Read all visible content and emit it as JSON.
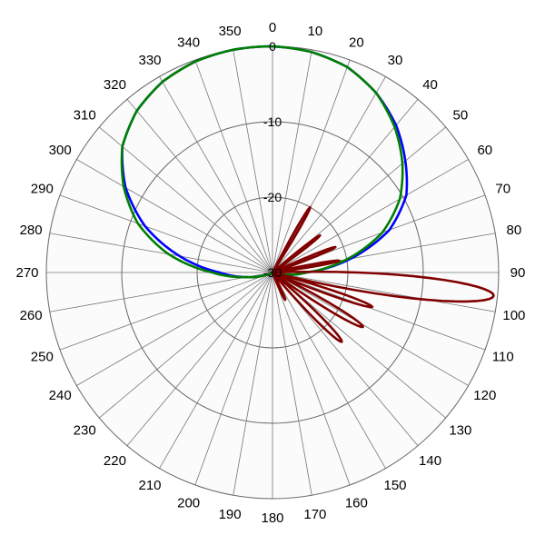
{
  "chart_data": {
    "type": "polar",
    "angle_ticks": [
      "0",
      "10",
      "20",
      "30",
      "40",
      "50",
      "60",
      "70",
      "80",
      "90",
      "100",
      "110",
      "120",
      "130",
      "140",
      "150",
      "160",
      "170",
      "180",
      "190",
      "200",
      "210",
      "220",
      "230",
      "240",
      "250",
      "260",
      "270",
      "280",
      "290",
      "300",
      "310",
      "320",
      "330",
      "340",
      "350"
    ],
    "angle_tick_values": [
      0,
      10,
      20,
      30,
      40,
      50,
      60,
      70,
      80,
      90,
      100,
      110,
      120,
      130,
      140,
      150,
      160,
      170,
      180,
      190,
      200,
      210,
      220,
      230,
      240,
      250,
      260,
      270,
      280,
      290,
      300,
      310,
      320,
      330,
      340,
      350
    ],
    "angle_direction": "clockwise",
    "angle_zero": "top",
    "radial_ticks": [
      "0",
      "-10",
      "-20",
      "-30"
    ],
    "radial_tick_values": [
      0,
      -10,
      -20,
      -30
    ],
    "rlim": [
      -30,
      0
    ],
    "grid": true,
    "series": [
      {
        "color": "#0000ff",
        "angles": [
          0,
          10,
          20,
          30,
          40,
          50,
          60,
          70,
          80,
          90,
          100,
          110,
          120,
          180,
          240,
          250,
          260,
          270,
          280,
          290,
          300,
          310,
          320,
          330,
          340,
          350
        ],
        "values": [
          0,
          -0.3,
          -1,
          -2.5,
          -4.5,
          -7,
          -9.5,
          -13.5,
          -19.5,
          -25.5,
          -28.5,
          -29.5,
          -29.8,
          -30,
          -29.8,
          -29,
          -26.5,
          -23,
          -17.5,
          -12,
          -7.5,
          -4,
          -2,
          -0.8,
          -0.2,
          0
        ]
      },
      {
        "color": "#008000",
        "angles": [
          0,
          10,
          20,
          30,
          40,
          50,
          60,
          70,
          80,
          90,
          100,
          110,
          120,
          180,
          240,
          250,
          260,
          270,
          280,
          290,
          300,
          310,
          320,
          330,
          340,
          350
        ],
        "values": [
          0,
          -0.3,
          -1,
          -2.5,
          -4.8,
          -7.5,
          -10.5,
          -14.5,
          -20,
          -25.5,
          -28.5,
          -29.5,
          -29.8,
          -30,
          -29.8,
          -29,
          -26.5,
          -22,
          -16,
          -11,
          -7.2,
          -4,
          -2,
          -0.8,
          -0.2,
          0
        ]
      },
      {
        "color": "#800000",
        "lobes": [
          {
            "center": 30,
            "width": 3,
            "peak": -20
          },
          {
            "center": 52,
            "width": 3,
            "peak": -22
          },
          {
            "center": 68,
            "width": 3,
            "peak": -21
          },
          {
            "center": 80,
            "width": 3,
            "peak": -21
          },
          {
            "center": 96,
            "width": 8,
            "peak": -0.5
          },
          {
            "center": 109,
            "width": 4,
            "peak": -16
          },
          {
            "center": 121,
            "width": 5,
            "peak": -16
          },
          {
            "center": 135,
            "width": 5,
            "peak": -17
          },
          {
            "center": 155,
            "width": 4,
            "peak": -26
          }
        ]
      }
    ]
  }
}
